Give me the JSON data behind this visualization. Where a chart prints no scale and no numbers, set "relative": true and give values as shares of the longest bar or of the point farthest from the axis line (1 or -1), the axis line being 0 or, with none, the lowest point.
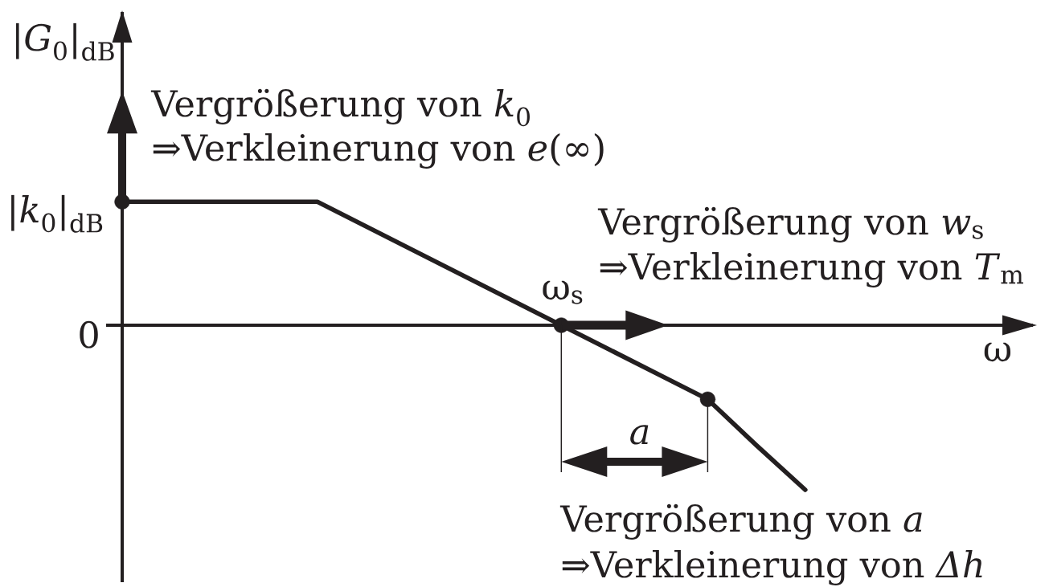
{
  "chart_data": {
    "type": "line",
    "relative": true,
    "xlabel": "ω",
    "ylabel": "|*G*$_{0}$|$_{dB}$",
    "categories": [
      null,
      null,
      null,
      null,
      null,
      null,
      null,
      null,
      null,
      null,
      null,
      null,
      null,
      null,
      null
    ],
    "series": [
      {
        "color": "#231f20",
        "values": [
          0.75,
          0.75,
          0.75,
          0.75,
          0.75,
          0.6,
          0.45,
          0.3,
          0.15,
          0,
          -0.15,
          -0.3,
          -0.45,
          -0.73,
          -1
        ]
      },
      {
        "color": "#231f20",
        "marker": "circle",
        "values": [
          0.75,
          null,
          null,
          null,
          null,
          null,
          null,
          null,
          null,
          0,
          null,
          null,
          -0.45,
          null,
          null
        ]
      }
    ],
    "annotations": [
      "|*k*$_{0}$|$_{dB}$",
      "0",
      "Vergrößerung von *k*$_{0}$",
      "⇒Verkleinerung von *e*(∞)",
      "ω$_{s}$",
      "Vergrößerung von *w*$_{s}$",
      "⇒Verkleinerung von *T*$_{m}$",
      "*a*",
      "Vergrößerung von *a*",
      "⇒Verkleinerung von *Δh*"
    ]
  }
}
